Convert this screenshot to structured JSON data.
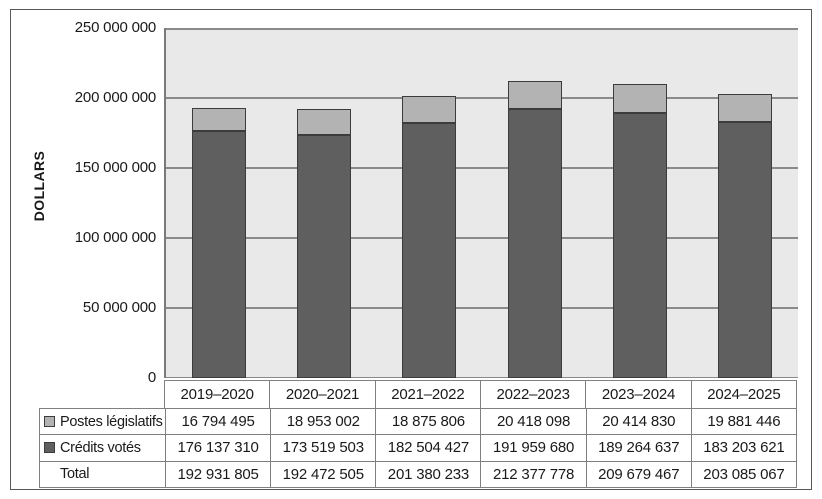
{
  "colors": {
    "series_light": "#b3b3b3",
    "series_dark": "#5f5f5f",
    "bar_border": "#3c3c3c",
    "plot_background": "#e9e9e9",
    "gridline": "#8a8a8a",
    "axis_line": "#7a7a7a",
    "table_border": "#808080",
    "figure_border": "#595959",
    "text": "#1a1a1a"
  },
  "chart_data": {
    "type": "bar",
    "stacked": true,
    "title": "",
    "ylabel": "DOLLARS",
    "xlabel": "",
    "categories": [
      "2019–2020",
      "2020–2021",
      "2021–2022",
      "2022–2023",
      "2023–2024",
      "2024–2025"
    ],
    "series": [
      {
        "name": "Postes législatifs",
        "color_key": "series_light",
        "values": [
          16794495,
          18953002,
          18875806,
          20418098,
          20414830,
          19881446
        ]
      },
      {
        "name": "Crédits votés",
        "color_key": "series_dark",
        "values": [
          176137310,
          173519503,
          182504427,
          191959680,
          189264637,
          183203621
        ]
      }
    ],
    "totals": [
      192931805,
      192472505,
      201380233,
      212377778,
      209679467,
      203085067
    ],
    "ylim": [
      0,
      250000000
    ],
    "yticks": [
      0,
      50000000,
      100000000,
      150000000,
      200000000,
      250000000
    ],
    "ytick_labels": [
      "0",
      "50 000 000",
      "100 000 000",
      "150 000 000",
      "200 000 000",
      "250 000 000"
    ],
    "grid": "horizontal",
    "legend_position": "data-table-left-column"
  },
  "table": {
    "header": [
      "2019–2020",
      "2020–2021",
      "2021–2022",
      "2022–2023",
      "2023–2024",
      "2024–2025"
    ],
    "rows": [
      {
        "label": "Postes législatifs",
        "marker": "light-square",
        "values": [
          "16 794 495",
          "18 953 002",
          "18 875 806",
          "20 418 098",
          "20 414 830",
          "19 881 446"
        ]
      },
      {
        "label": "Crédits votés",
        "marker": "dark-square",
        "values": [
          "176 137 310",
          "173 519 503",
          "182 504 427",
          "191 959 680",
          "189 264 637",
          "183 203 621"
        ]
      },
      {
        "label": "Total",
        "marker": "none",
        "values": [
          "192 931 805",
          "192 472 505",
          "201 380 233",
          "212 377 778",
          "209 679 467",
          "203 085 067"
        ]
      }
    ]
  }
}
